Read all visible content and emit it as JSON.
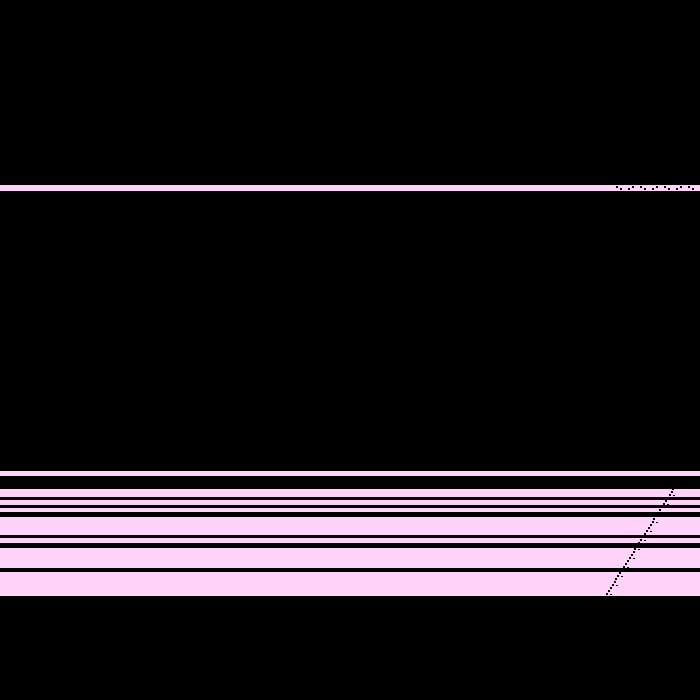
{
  "screen": {
    "description_type": "corrupted-graphics-frame",
    "background_color": "#000000",
    "stripe_color": "#ffd3f9",
    "dither_color": "#000000"
  }
}
